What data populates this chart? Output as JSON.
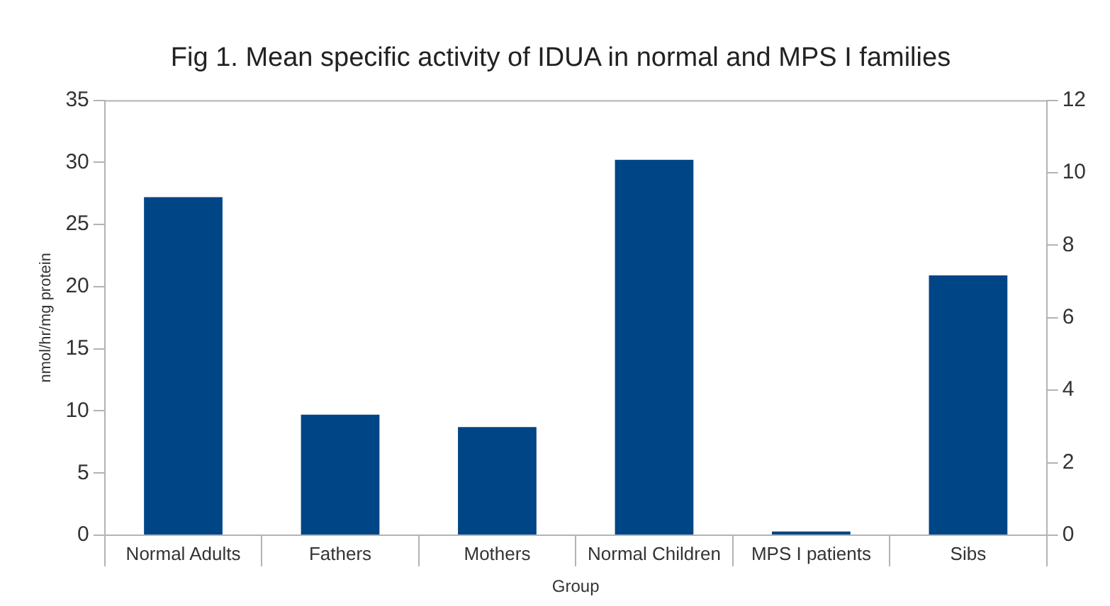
{
  "chart_data": {
    "type": "bar",
    "title": "Fig 1. Mean specific activity of IDUA in normal and MPS I families",
    "xlabel": "Group",
    "ylabel": "nmol/hr/mg protein",
    "categories": [
      "Normal Adults",
      "Fathers",
      "Mothers",
      "Normal Children",
      "MPS I patients",
      "Sibs"
    ],
    "values": [
      27.2,
      9.7,
      8.7,
      30.2,
      0.3,
      20.9
    ],
    "color": "#004586",
    "ylim": [
      0,
      35
    ],
    "yticks": [
      0,
      5,
      10,
      15,
      20,
      25,
      30,
      35
    ],
    "y2lim": [
      0,
      12
    ],
    "y2ticks": [
      0,
      2,
      4,
      6,
      8,
      10,
      12
    ],
    "grid": false,
    "legend": false
  }
}
